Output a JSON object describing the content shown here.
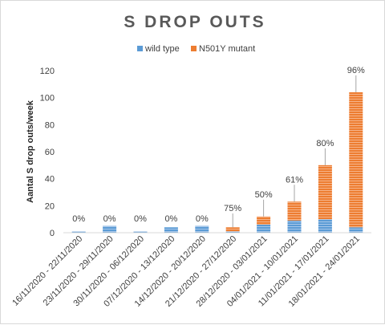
{
  "chart_data": {
    "type": "bar",
    "stacked": true,
    "title": "S DROP OUTS",
    "xlabel": "",
    "ylabel": "Aantal S drop outs/week",
    "ylim": [
      0,
      120
    ],
    "yticks": [
      0,
      20,
      40,
      60,
      80,
      100,
      120
    ],
    "grid": false,
    "legend_position": "top",
    "categories": [
      "16/11/2020 - 22/11/2020",
      "23/11/2020 - 29/11/2020",
      "30/11/2020 - 06/12/2020",
      "07/12/2020 - 13/12/2020",
      "14/12/2020 - 20/12/2020",
      "21/12/2020 - 27/12/2020",
      "28/12/2020 - 03/01/2021",
      "04/01/2021 - 10/01/2021",
      "11/01/2021 - 17/01/2021",
      "18/01/2021 - 24/01/2021"
    ],
    "series": [
      {
        "name": "wild type",
        "color": "#5b9bd5",
        "values": [
          1,
          5,
          1,
          4,
          5,
          1,
          6,
          9,
          10,
          4
        ]
      },
      {
        "name": "N501Y mutant",
        "color": "#ed7d31",
        "values": [
          0,
          0,
          0,
          0,
          0,
          3,
          6,
          14,
          40,
          100
        ]
      }
    ],
    "annotations": [
      "0%",
      "0%",
      "0%",
      "0%",
      "0%",
      "75%",
      "50%",
      "61%",
      "80%",
      "96%"
    ]
  }
}
